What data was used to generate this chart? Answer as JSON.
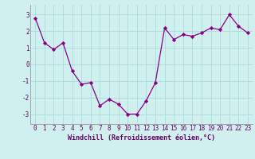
{
  "x": [
    0,
    1,
    2,
    3,
    4,
    5,
    6,
    7,
    8,
    9,
    10,
    11,
    12,
    13,
    14,
    15,
    16,
    17,
    18,
    19,
    20,
    21,
    22,
    23
  ],
  "y": [
    2.8,
    1.3,
    0.9,
    1.3,
    -0.4,
    -1.2,
    -1.1,
    -2.5,
    -2.1,
    -2.4,
    -3.0,
    -3.0,
    -2.2,
    -1.1,
    2.2,
    1.5,
    1.8,
    1.7,
    1.9,
    2.2,
    2.1,
    3.0,
    2.3,
    1.9
  ],
  "line_color": "#880088",
  "marker": "D",
  "marker_size": 2.2,
  "bg_color": "#d0f0f0",
  "grid_color": "#b0dede",
  "xlabel": "Windchill (Refroidissement éolien,°C)",
  "xlabel_fontsize": 6.0,
  "tick_fontsize": 5.5,
  "ylim": [
    -3.6,
    3.6
  ],
  "xlim": [
    -0.5,
    23.5
  ],
  "yticks": [
    -3,
    -2,
    -1,
    0,
    1,
    2,
    3
  ],
  "linewidth": 0.9
}
